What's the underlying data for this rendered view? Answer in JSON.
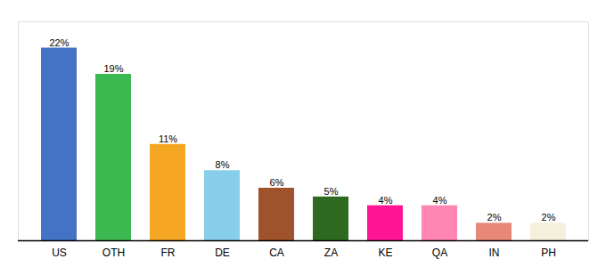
{
  "chart_data": {
    "type": "bar",
    "categories": [
      "US",
      "OTH",
      "FR",
      "DE",
      "CA",
      "ZA",
      "KE",
      "QA",
      "IN",
      "PH"
    ],
    "values": [
      22,
      19,
      11,
      8,
      6,
      5,
      4,
      4,
      2,
      2
    ],
    "value_labels": [
      "22%",
      "19%",
      "11%",
      "8%",
      "6%",
      "5%",
      "4%",
      "4%",
      "2%",
      "2%"
    ],
    "colors": [
      "#4472c4",
      "#3cb850",
      "#f5a623",
      "#87ceeb",
      "#a0522d",
      "#2d6a1f",
      "#ff1493",
      "#ff85b3",
      "#e88878",
      "#f5f0dc"
    ],
    "ylim": [
      0,
      25
    ],
    "data_labels": true,
    "tick_labels": "x",
    "grid": false
  }
}
